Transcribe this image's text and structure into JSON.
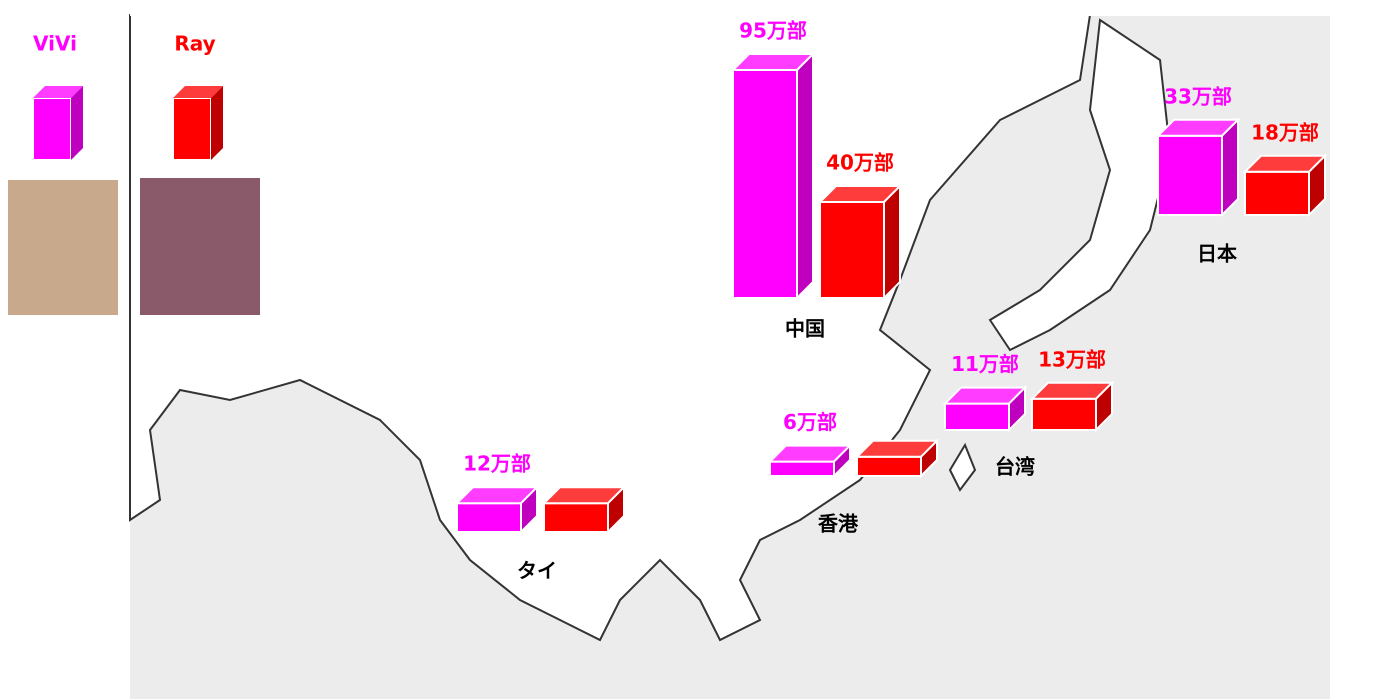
{
  "chart_data": {
    "type": "bar",
    "categories": [
      "中国",
      "日本",
      "台湾",
      "香港",
      "タイ"
    ],
    "series": [
      {
        "name": "ViVi",
        "color": "#ff00ff",
        "values": [
          95,
          33,
          11,
          6,
          12
        ],
        "value_labels": [
          "95万部",
          "33万部",
          "11万部",
          "6万部",
          "12万部"
        ]
      },
      {
        "name": "Ray",
        "color": "#ff0000",
        "values": [
          40,
          18,
          13,
          8,
          12
        ],
        "value_labels": [
          "40万部",
          "18万部",
          "13万部",
          null,
          null
        ]
      }
    ]
  }
}
